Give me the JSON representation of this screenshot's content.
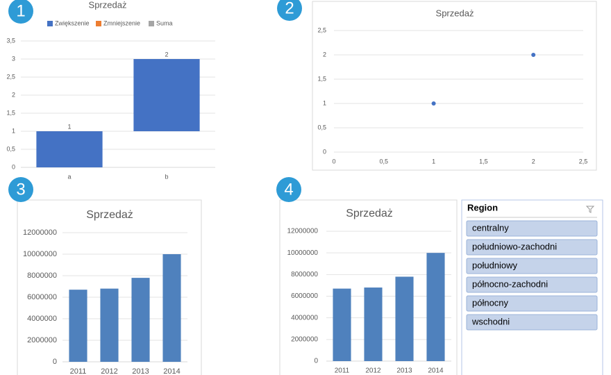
{
  "badges": [
    "1",
    "2",
    "3",
    "4"
  ],
  "chart_data": [
    {
      "type": "waterfall",
      "title": "Sprzedaż",
      "categories": [
        "a",
        "b"
      ],
      "series": [
        {
          "name": "Zwiększenie",
          "color": "#4472c4",
          "values": [
            1,
            2
          ]
        },
        {
          "name": "Zmniejszenie",
          "color": "#ed7d31",
          "values": [
            null,
            null
          ]
        },
        {
          "name": "Suma",
          "color": "#a5a5a5",
          "values": [
            null,
            null
          ]
        }
      ],
      "ylim": [
        0,
        3.5
      ],
      "yticks": [
        0,
        {
          "value": 0.5,
          "label": "0,5"
        },
        1,
        {
          "value": 1.5,
          "label": "1,5"
        },
        2,
        {
          "value": 2.5,
          "label": "2,5"
        },
        3,
        {
          "value": 3.5,
          "label": "3,5"
        }
      ],
      "grid": true,
      "legend": "top"
    },
    {
      "type": "scatter",
      "title": "Sprzedaż",
      "x": [
        1,
        2
      ],
      "values": [
        1,
        2
      ],
      "color": "#4472c4",
      "xlim": [
        0,
        2.5
      ],
      "xticks": [
        0,
        {
          "value": 0.5,
          "label": "0,5"
        },
        1,
        {
          "value": 1.5,
          "label": "1,5"
        },
        2,
        {
          "value": 2.5,
          "label": "2,5"
        }
      ],
      "ylim": [
        0,
        2.5
      ],
      "yticks": [
        0,
        {
          "value": 0.5,
          "label": "0,5"
        },
        1,
        {
          "value": 1.5,
          "label": "1,5"
        },
        2,
        {
          "value": 2.5,
          "label": "2,5"
        }
      ],
      "grid": true
    },
    {
      "type": "bar",
      "title": "Sprzedaż",
      "categories": [
        "2011",
        "2012",
        "2013",
        "2014"
      ],
      "values": [
        6700000,
        6800000,
        7800000,
        10000000
      ],
      "color": "#4f81bd",
      "ylim": [
        0,
        12000000
      ],
      "yticks": [
        0,
        2000000,
        4000000,
        6000000,
        8000000,
        10000000,
        12000000
      ],
      "grid": true
    },
    {
      "type": "bar",
      "title": "Sprzedaż",
      "categories": [
        "2011",
        "2012",
        "2013",
        "2014"
      ],
      "values": [
        6700000,
        6800000,
        7800000,
        10000000
      ],
      "color": "#4f81bd",
      "ylim": [
        0,
        12000000
      ],
      "yticks": [
        0,
        2000000,
        4000000,
        6000000,
        8000000,
        10000000,
        12000000
      ],
      "grid": true
    }
  ],
  "slicer": {
    "title": "Region",
    "items": [
      "centralny",
      "południowo-zachodni",
      "południowy",
      "północno-zachodni",
      "północny",
      "wschodni"
    ]
  }
}
